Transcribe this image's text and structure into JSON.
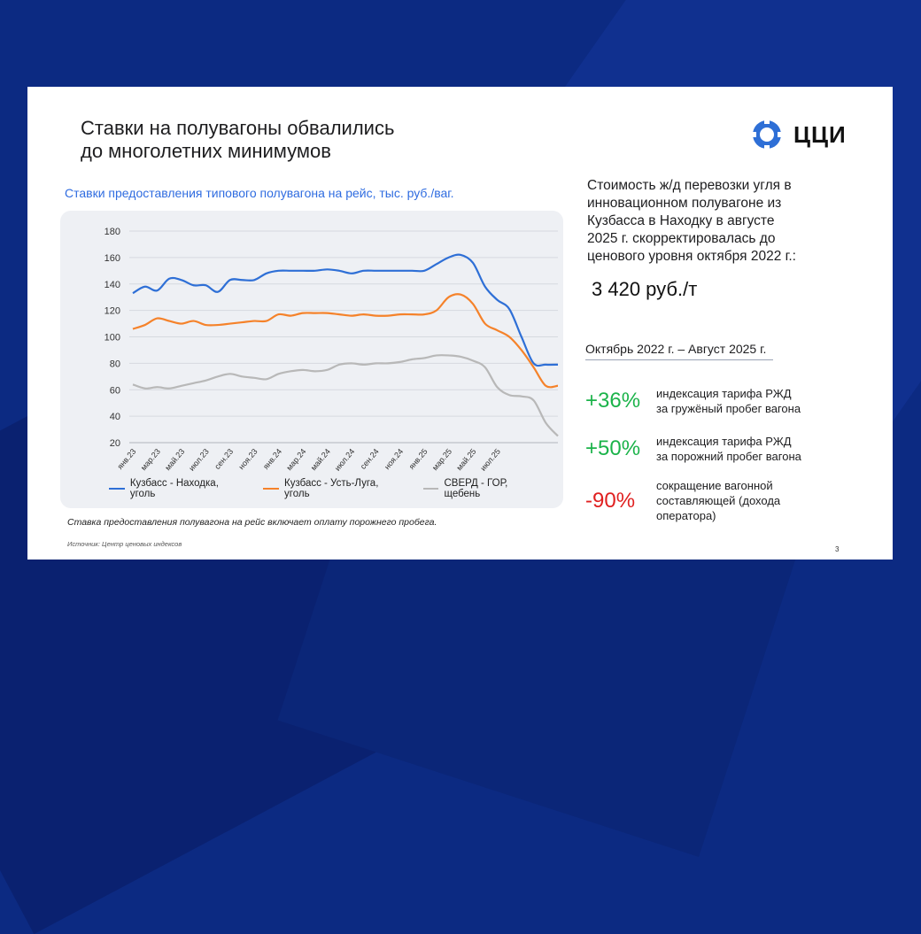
{
  "slide": {
    "title_line1": "Ставки на полувагоны обвалились",
    "title_line2": "до многолетних минимумов",
    "logo_text": "ЦЦИ",
    "chart_note": "Ставка предоставления полувагона на рейс включает оплату порожнего пробега.",
    "source": "Источник: Центр ценовых индексов",
    "page_number": "3",
    "right": {
      "desc_lines": [
        "Стоимость ж/д перевозки угля в",
        "инновационном полувагоне из",
        "Кузбасса в Находку в августе",
        "2025 г. скорректировалась до",
        "ценового уровня октября 2022 г.:"
      ],
      "price": "3 420 руб./т",
      "period": "Октябрь 2022 г. – Август 2025 г.",
      "stats": [
        {
          "value": "+36%",
          "label_lines": [
            "индексация тарифа РЖД",
            "за гружёный пробег вагона"
          ],
          "color": "#1bb34a"
        },
        {
          "value": "+50%",
          "label_lines": [
            "индексация тарифа РЖД",
            "за порожний пробег вагона"
          ],
          "color": "#1bb34a"
        },
        {
          "value": "-90%",
          "label_lines": [
            "сокращение вагонной",
            "составляющей (дохода",
            "оператора)"
          ],
          "color": "#e02020"
        }
      ]
    }
  },
  "chart_data": {
    "type": "line",
    "title": "Ставки предоставления типового полувагона на рейс, тыс. руб./ваг.",
    "xlabel": "",
    "ylabel": "",
    "ylim": [
      20,
      180
    ],
    "yticks": [
      180,
      160,
      140,
      120,
      100,
      80,
      60,
      40,
      20
    ],
    "grid": "horizontal",
    "legend_position": "bottom",
    "x_tick_labels": [
      "янв.23",
      "мар.23",
      "май.23",
      "июл.23",
      "сен.23",
      "ноя.23",
      "янв.24",
      "мар.24",
      "май.24",
      "июл.24",
      "сен.24",
      "ноя.24",
      "янв.25",
      "мар.25",
      "май.25",
      "июл.25"
    ],
    "series": [
      {
        "name": "Кузбасс - Находка, уголь",
        "color": "#2e6fd6",
        "values": [
          133,
          138,
          135,
          144,
          143,
          139,
          139,
          134,
          143,
          143,
          143,
          148,
          150,
          150,
          150,
          150,
          151,
          150,
          148,
          150,
          150,
          150,
          150,
          150,
          150,
          155,
          160,
          162,
          156,
          138,
          128,
          121,
          100,
          80,
          79,
          79
        ]
      },
      {
        "name": "Кузбасс - Усть-Луга, уголь",
        "color": "#f5822a",
        "values": [
          106,
          109,
          114,
          112,
          110,
          112,
          109,
          109,
          110,
          111,
          112,
          112,
          117,
          116,
          118,
          118,
          118,
          117,
          116,
          117,
          116,
          116,
          117,
          117,
          117,
          120,
          130,
          132,
          125,
          110,
          105,
          100,
          90,
          77,
          63,
          63
        ]
      },
      {
        "name": "СВЕРД - ГОР, щебень",
        "color": "#b8b8b8",
        "values": [
          64,
          61,
          62,
          61,
          63,
          65,
          67,
          70,
          72,
          70,
          69,
          68,
          72,
          74,
          75,
          74,
          75,
          79,
          80,
          79,
          80,
          80,
          81,
          83,
          84,
          86,
          86,
          85,
          82,
          77,
          62,
          56,
          55,
          52,
          35,
          25
        ]
      }
    ]
  }
}
